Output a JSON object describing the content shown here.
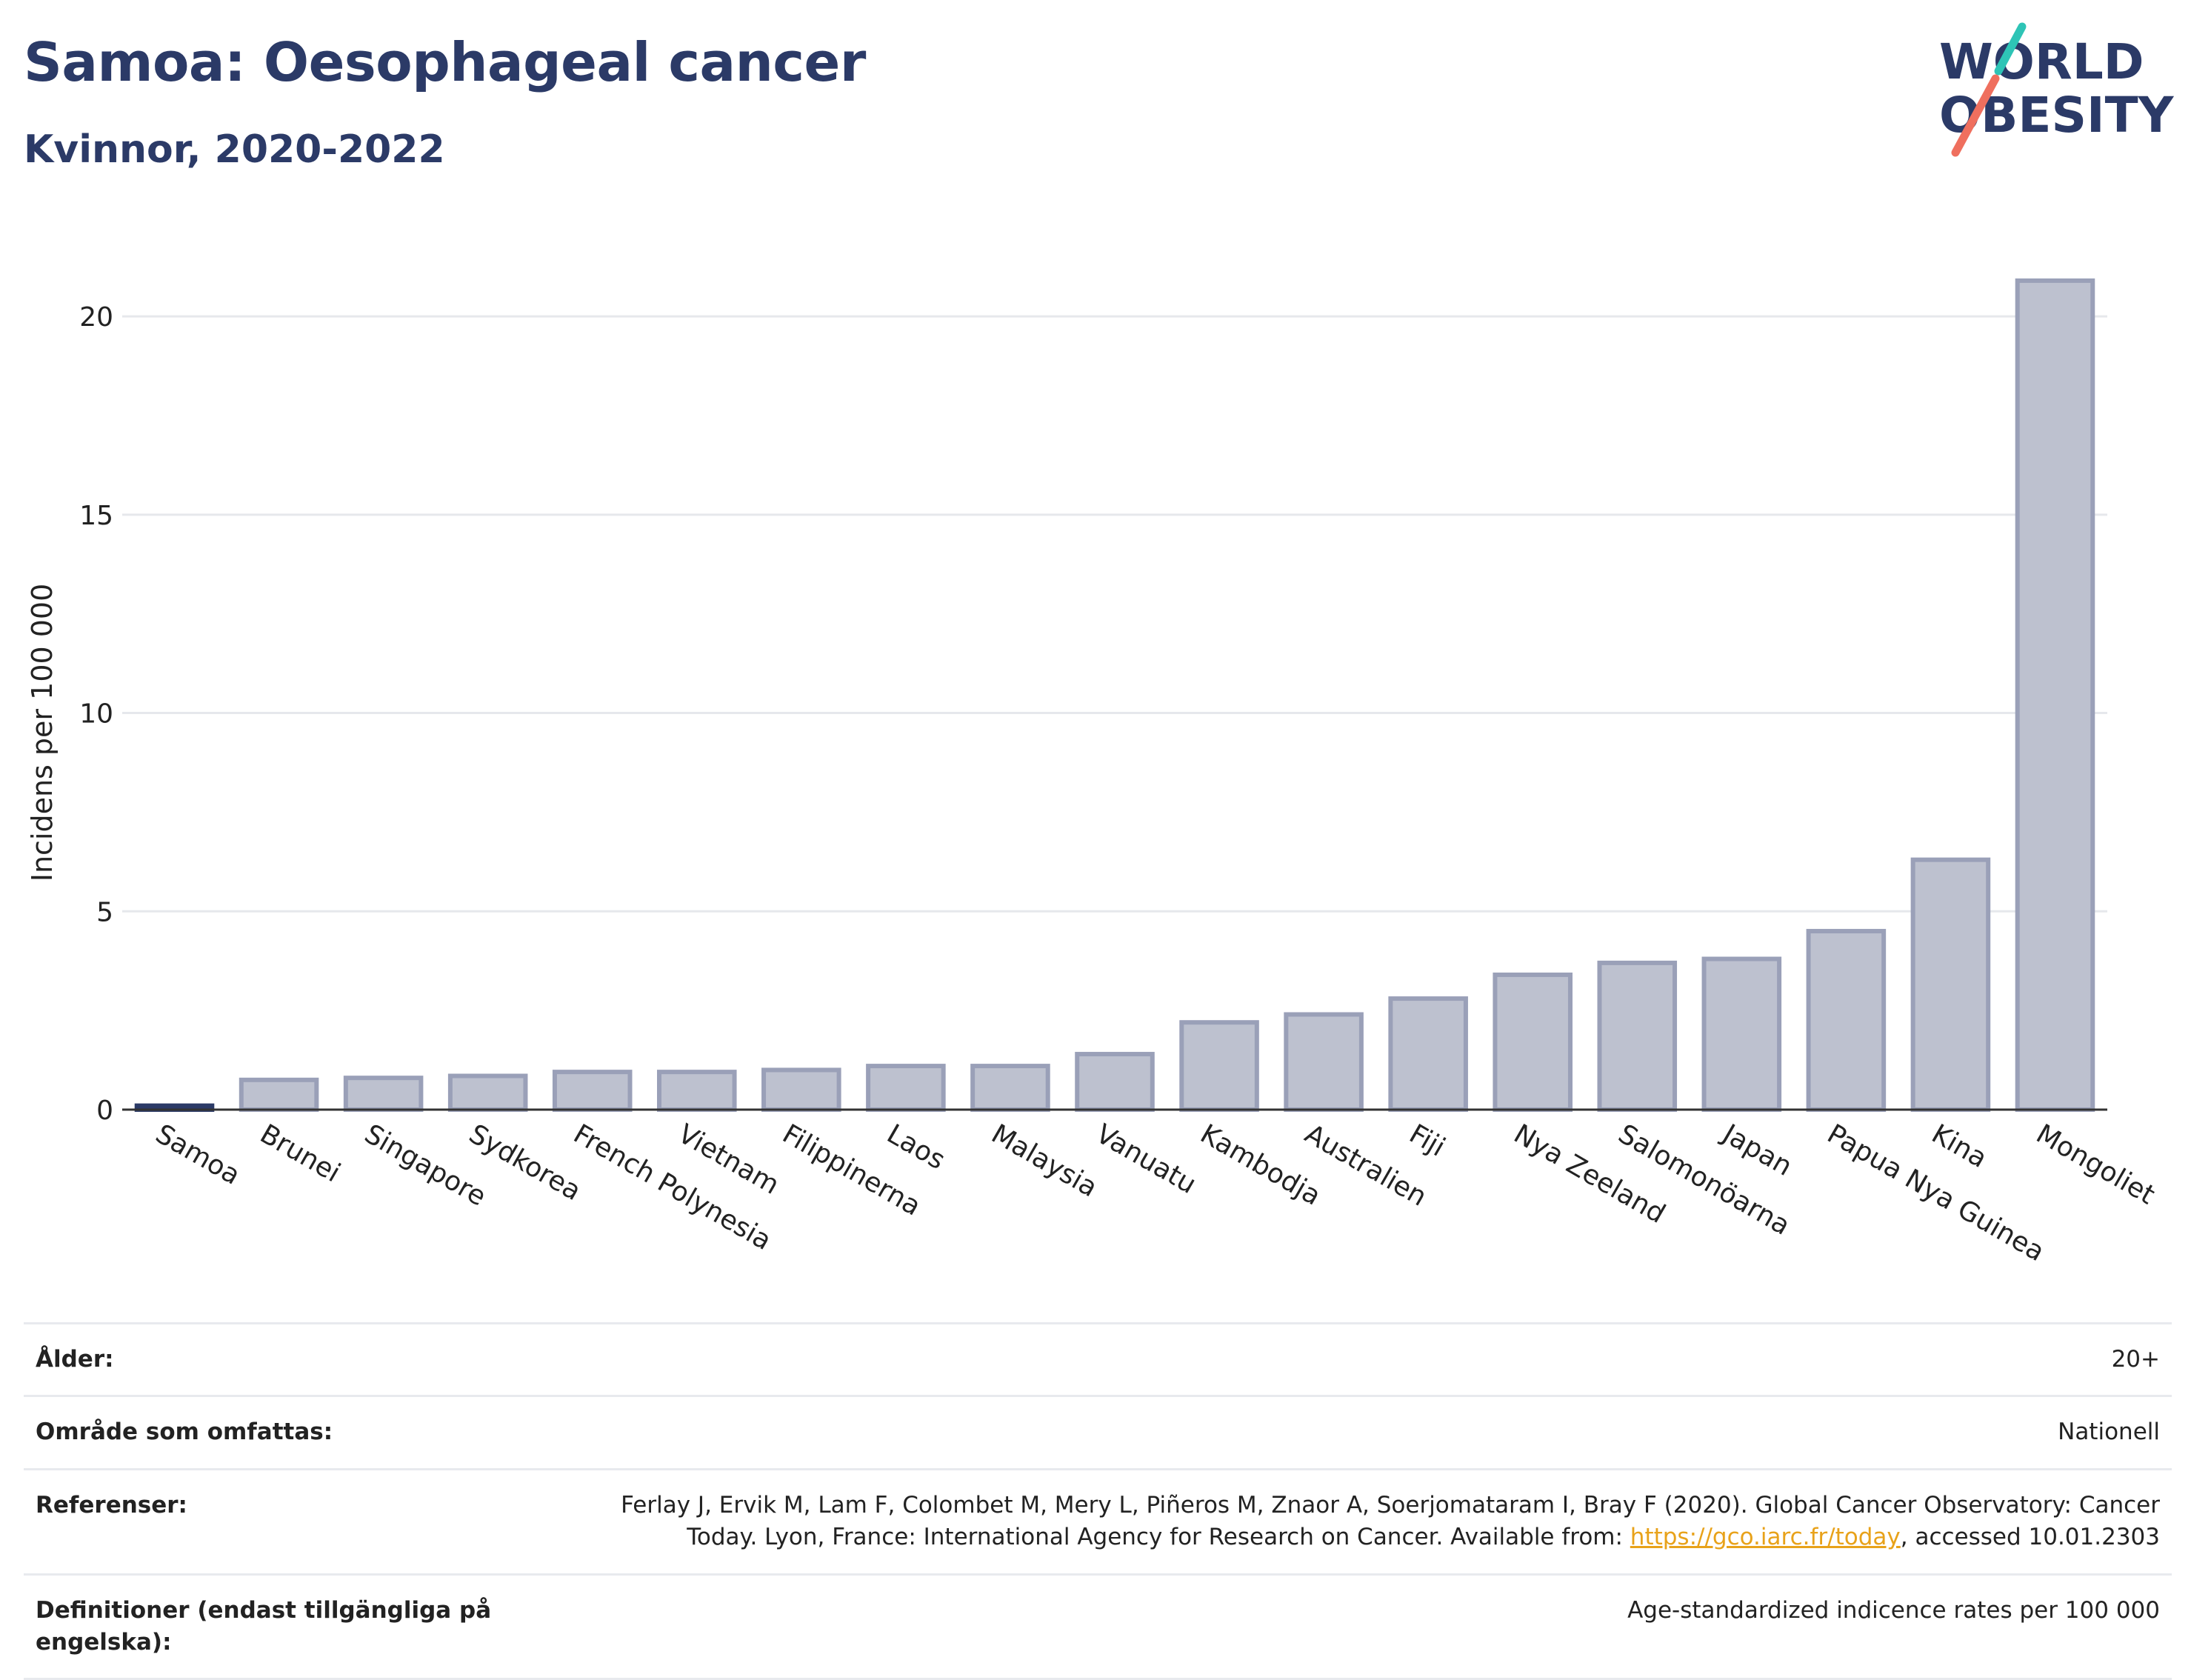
{
  "header": {
    "title": "Samoa: Oesophageal cancer",
    "subtitle": "Kvinnor, 2020-2022"
  },
  "logo": {
    "line1": "WORLD",
    "line2": "OBESITY",
    "text_color": "#2b3a67",
    "slash_colors": [
      "#2ec4b6",
      "#ef6f5e"
    ]
  },
  "chart_data": {
    "type": "bar",
    "ylabel": "Incidens per 100 000",
    "ylim": [
      0,
      22
    ],
    "yticks": [
      0,
      5,
      10,
      15,
      20
    ],
    "grid": true,
    "categories": [
      "Samoa",
      "Brunei",
      "Singapore",
      "Sydkorea",
      "French Polynesia",
      "Vietnam",
      "Filippinerna",
      "Laos",
      "Malaysia",
      "Vanuatu",
      "Kambodja",
      "Australien",
      "Fiji",
      "Nya Zeeland",
      "Salomonöarna",
      "Japan",
      "Papua Nya Guinea",
      "Kina",
      "Mongoliet"
    ],
    "values": [
      0.1,
      0.75,
      0.8,
      0.85,
      0.95,
      0.95,
      1.0,
      1.1,
      1.1,
      1.4,
      2.2,
      2.4,
      2.8,
      3.4,
      3.7,
      3.8,
      4.5,
      6.3,
      20.9
    ],
    "highlight": "Samoa",
    "colors": {
      "highlight": "#2b3a67",
      "bar_fill": "#bdc1cf",
      "bar_stroke": "#9aa0b8"
    }
  },
  "info": [
    {
      "label": "Ålder:",
      "value": "20+"
    },
    {
      "label": "Område som omfattas:",
      "value": "Nationell"
    },
    {
      "label": "Referenser:",
      "value_line1": "Ferlay J, Ervik M, Lam F, Colombet M, Mery L, Piñeros M, Znaor A, Soerjomataram I, Bray F (2020). Global Cancer Observatory: Cancer",
      "value_line2_pre": "Today. Lyon, France: International Agency for Research on Cancer. Available from: ",
      "link": "https://gco.iarc.fr/today",
      "value_line2_post": ", accessed 10.01.2303"
    },
    {
      "label": "Definitioner (endast tillgängliga på engelska):",
      "value": "Age-standardized indicence rates per 100 000"
    }
  ]
}
